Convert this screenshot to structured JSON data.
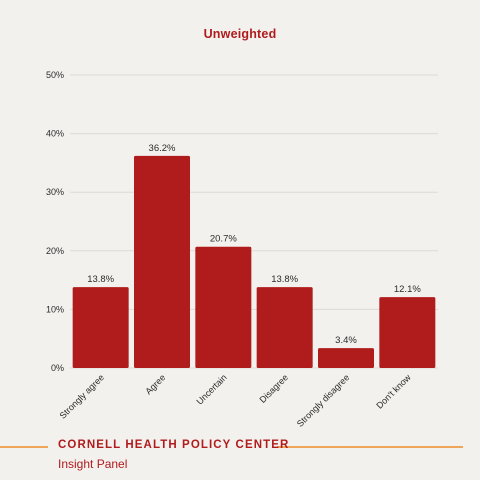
{
  "colors": {
    "background": "#f2f1ee",
    "bar": "#b01b1c",
    "title": "#b01b1c",
    "gridline": "#dcdad5",
    "footer_text": "#b01b1c",
    "footer_rule": "#f0a65a"
  },
  "chart_data": {
    "type": "bar",
    "title": "Unweighted",
    "xlabel": "",
    "ylabel": "",
    "categories": [
      "Strongly agree",
      "Agree",
      "Uncertain",
      "Disagree",
      "Strongly disagree",
      "Don't know"
    ],
    "values": [
      13.8,
      36.2,
      20.7,
      13.8,
      3.4,
      12.1
    ],
    "data_labels": [
      "13.8%",
      "36.2%",
      "20.7%",
      "13.8%",
      "3.4%",
      "12.1%"
    ],
    "ylim": [
      0,
      50
    ],
    "yticks": [
      0,
      10,
      20,
      30,
      40,
      50
    ],
    "ytick_labels": [
      "0%",
      "10%",
      "20%",
      "30%",
      "40%",
      "50%"
    ],
    "grid": true,
    "legend": "none"
  },
  "footer": {
    "organization": "CORNELL HEALTH POLICY CENTER",
    "subtitle": "Insight Panel"
  }
}
